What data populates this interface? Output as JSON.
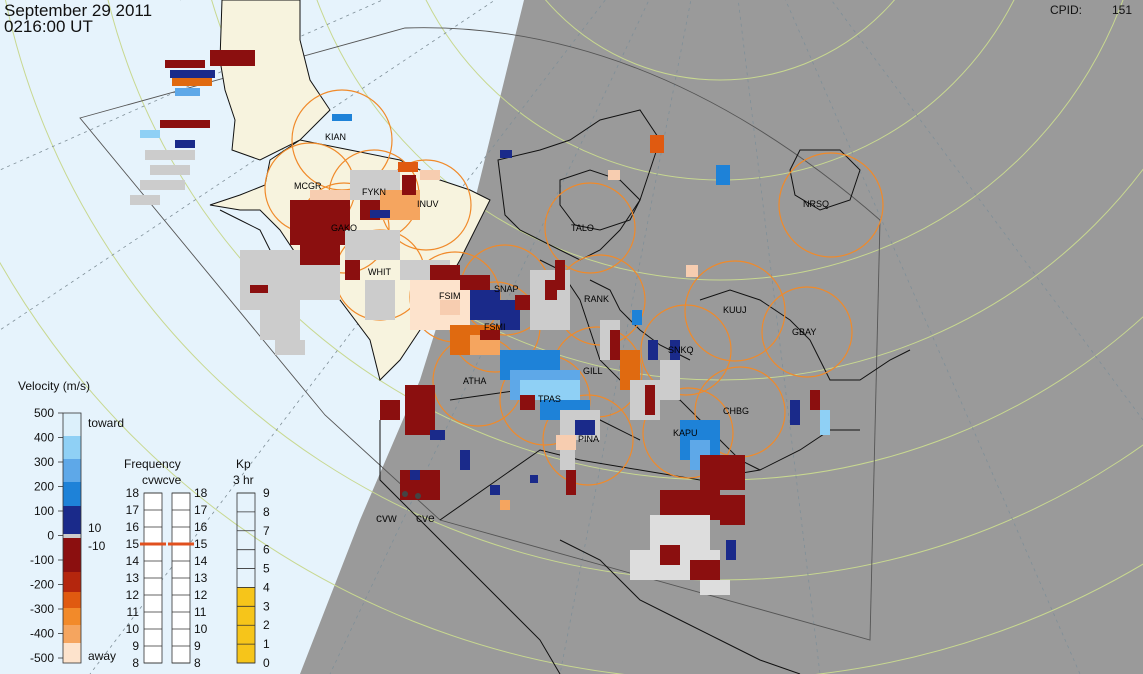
{
  "header": {
    "date": "September 29 2011",
    "time": "0216:00 UT",
    "cpid_label": "CPID:",
    "cpid_value": "151"
  },
  "colors": {
    "day_side": "#e6f3fc",
    "night_side": "#9a9a9a",
    "range_circle": "#f08a2a",
    "lat_circle": "#c8d890",
    "coast": "#111111",
    "kp_fill": "#f6c51a",
    "freq_marker": "#e0501f"
  },
  "stations": [
    {
      "code": "KIAN"
    },
    {
      "code": "MCGR"
    },
    {
      "code": "FYKN"
    },
    {
      "code": "INUV"
    },
    {
      "code": "GAKO"
    },
    {
      "code": "TALO"
    },
    {
      "code": "NRSQ"
    },
    {
      "code": "WHIT"
    },
    {
      "code": "FSIM"
    },
    {
      "code": "SNAP"
    },
    {
      "code": "RANK"
    },
    {
      "code": "KUUJ"
    },
    {
      "code": "GBAY"
    },
    {
      "code": "FSMI"
    },
    {
      "code": "SNKQ"
    },
    {
      "code": "ATHA"
    },
    {
      "code": "GILL"
    },
    {
      "code": "TPAS"
    },
    {
      "code": "CHBG"
    },
    {
      "code": "KAPU"
    },
    {
      "code": "PINA"
    }
  ],
  "radars": [
    {
      "code": "cvw"
    },
    {
      "code": "cve"
    }
  ],
  "velocity_scale": {
    "title": "Velocity (m/s)",
    "ticks": [
      "500",
      "400",
      "300",
      "200",
      "100",
      "0",
      "-100",
      "-200",
      "-300",
      "-400",
      "-500"
    ],
    "toward_label": "toward",
    "away_label": "away",
    "threshold_pos": "10",
    "threshold_neg": "-10"
  },
  "frequency_scale": {
    "title": "Frequency",
    "subtitle": "cvwcve",
    "ticks": [
      "18",
      "17",
      "16",
      "15",
      "14",
      "13",
      "12",
      "11",
      "10",
      "9",
      "8"
    ],
    "cvw_mhz": 15,
    "cve_mhz": 15
  },
  "kp_scale": {
    "title": "Kp",
    "subtitle": "3 hr",
    "ticks": [
      "9",
      "8",
      "7",
      "6",
      "5",
      "4",
      "3",
      "2",
      "1",
      "0"
    ],
    "value": 4
  }
}
